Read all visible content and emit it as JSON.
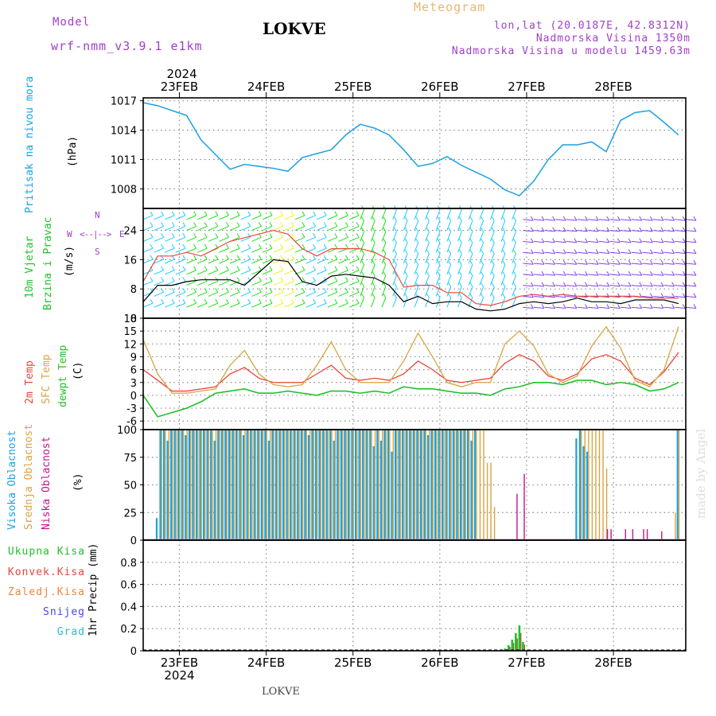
{
  "header": {
    "model_label": "Model",
    "model_name": "wrf-nmm_v3.9.1  e1km",
    "station": "LOKVE",
    "meteogram": "Meteogram",
    "lonlat": "lon,lat (20.0187E, 42.8312N)",
    "elevation": "Nadmorska Visina 1350m",
    "model_elevation": "Nadmorska Visina u modelu 1459.63m"
  },
  "footer": {
    "station": "LOKVE",
    "credit": "made by Angel"
  },
  "axis": {
    "year": "2024",
    "days": [
      "23FEB",
      "24FEB",
      "25FEB",
      "26FEB",
      "27FEB",
      "28FEB"
    ]
  },
  "colors": {
    "pressure": "#1ba1e2",
    "wind_speed": "#000000",
    "wind_gust": "#e8463c",
    "temp2m": "#e8463c",
    "sfc_temp": "#d9a441",
    "dewpt": "#22c02a",
    "cloud_high": "#1ba1e2",
    "cloud_mid": "#d9a441",
    "cloud_low": "#c4148c",
    "precip_total": "#22c02a",
    "precip_conv": "#e8463c",
    "precip_frozen": "#f0843c",
    "snow": "#4848e8",
    "grad": "#22c0c0"
  },
  "labels": {
    "pressure": [
      "Pritisak na nivou mora",
      "(hPa)"
    ],
    "wind": [
      "10m Vjetar",
      "Brzina i Pravac",
      "(m/s)"
    ],
    "compass": {
      "n": "N",
      "s": "S",
      "e": "E",
      "w": "W"
    },
    "temp": [
      "2m Temp",
      "SFC Temp",
      "dewpt Temp",
      "(C)"
    ],
    "cloud": [
      "Visoka Oblacnost",
      "Srednja Oblacnost",
      "Niska Oblacnost",
      "(%)"
    ],
    "precip_legend": [
      "Ukupna Kisa",
      "Konvek.Kisa",
      "Zaledj.Kisa",
      "Snijeg",
      "Grad"
    ],
    "precip_unit": "1hr Precip (mm)"
  },
  "chart_data": [
    {
      "type": "line",
      "panel": "pressure",
      "ylabel": "(hPa)",
      "ylim": [
        1006,
        1017.3
      ],
      "yticks": [
        1008,
        1011,
        1014,
        1017
      ],
      "x": [
        0,
        4,
        8,
        12,
        16,
        20,
        24,
        28,
        32,
        36,
        40,
        44,
        48,
        52,
        56,
        60,
        64,
        68,
        72,
        76,
        80,
        84,
        88,
        92,
        96,
        100,
        104,
        108,
        112,
        116,
        120,
        124,
        128,
        132,
        136,
        140,
        144,
        148
      ],
      "series": [
        {
          "name": "Pritisak na nivou mora",
          "values": [
            1016.8,
            1016.5,
            1016.0,
            1015.5,
            1013.0,
            1011.5,
            1010.0,
            1010.5,
            1010.3,
            1010.1,
            1009.8,
            1011.2,
            1011.6,
            1012.0,
            1013.5,
            1014.6,
            1014.2,
            1013.5,
            1012.0,
            1010.3,
            1010.6,
            1011.3,
            1010.4,
            1009.7,
            1009.0,
            1007.9,
            1007.3,
            1008.8,
            1011.0,
            1012.5,
            1012.5,
            1012.8,
            1011.8,
            1015.0,
            1015.8,
            1016.0,
            1014.8,
            1013.5
          ]
        }
      ]
    },
    {
      "type": "line",
      "panel": "wind",
      "ylabel": "(m/s)",
      "ylim": [
        0,
        30
      ],
      "yticks": [
        0,
        8,
        16,
        24
      ],
      "x": [
        0,
        4,
        8,
        12,
        16,
        20,
        24,
        28,
        32,
        36,
        40,
        44,
        48,
        52,
        56,
        60,
        64,
        68,
        72,
        76,
        80,
        84,
        88,
        92,
        96,
        100,
        104,
        108,
        112,
        116,
        120,
        124,
        128,
        132,
        136,
        140,
        144,
        148
      ],
      "series": [
        {
          "name": "speed",
          "values": [
            4.5,
            9.0,
            9.0,
            10.0,
            10.5,
            10.5,
            10.5,
            9.0,
            12.5,
            16.0,
            15.5,
            10.0,
            9.0,
            11.5,
            12.0,
            11.5,
            11.0,
            9.0,
            4.5,
            6.0,
            4.0,
            4.5,
            4.5,
            2.5,
            2.0,
            2.5,
            4.0,
            4.5,
            4.0,
            4.5,
            5.5,
            4.5,
            4.5,
            4.0,
            5.0,
            5.0,
            5.0,
            4.0
          ]
        },
        {
          "name": "gust",
          "values": [
            10.0,
            17.0,
            17.0,
            18.0,
            17.0,
            19.0,
            21.0,
            22.0,
            23.0,
            24.0,
            23.0,
            19.0,
            17.0,
            19.0,
            19.0,
            19.0,
            18.0,
            16.0,
            8.5,
            9.0,
            9.0,
            7.0,
            7.0,
            4.0,
            3.5,
            4.5,
            6.0,
            6.5,
            6.0,
            6.5,
            6.0,
            6.0,
            6.0,
            6.0,
            6.0,
            5.5,
            5.5,
            5.5
          ]
        }
      ],
      "barbs": {
        "x_step": 3,
        "levels": [
          0,
          3,
          6,
          9,
          12,
          15,
          18,
          21,
          24,
          27,
          30
        ],
        "speed_color_stops": [
          [
            0,
            "#00c8ff"
          ],
          [
            10,
            "#00e000"
          ],
          [
            14,
            "#f0f000"
          ],
          [
            18,
            "#ff3030"
          ]
        ],
        "after_hour_104_color": "#7a2cf0"
      }
    },
    {
      "type": "line",
      "panel": "temperature",
      "ylabel": "(C)",
      "ylim": [
        -8,
        18
      ],
      "yticks": [
        -6,
        -3,
        0,
        3,
        6,
        9,
        12,
        15,
        18
      ],
      "x": [
        0,
        4,
        8,
        12,
        16,
        20,
        24,
        28,
        32,
        36,
        40,
        44,
        48,
        52,
        56,
        60,
        64,
        68,
        72,
        76,
        80,
        84,
        88,
        92,
        96,
        100,
        104,
        108,
        112,
        116,
        120,
        124,
        128,
        132,
        136,
        140,
        144,
        148
      ],
      "series": [
        {
          "name": "2m Temp",
          "values": [
            6.0,
            3.5,
            1.0,
            1.0,
            1.5,
            2.0,
            5.0,
            6.5,
            4.0,
            3.0,
            3.0,
            3.0,
            5.0,
            7.0,
            4.0,
            3.5,
            4.0,
            3.5,
            5.0,
            8.0,
            6.0,
            3.5,
            3.0,
            3.5,
            4.0,
            7.5,
            9.5,
            8.0,
            4.5,
            3.5,
            5.0,
            8.5,
            9.5,
            8.0,
            4.0,
            2.5,
            5.5,
            10.0
          ]
        },
        {
          "name": "SFC Temp",
          "values": [
            13.0,
            5.0,
            0.5,
            0.5,
            1.0,
            1.5,
            7.0,
            10.5,
            5.0,
            2.5,
            2.0,
            2.5,
            7.0,
            12.5,
            6.0,
            3.0,
            3.0,
            3.0,
            8.0,
            14.5,
            9.0,
            3.0,
            2.0,
            3.0,
            3.0,
            12.0,
            15.0,
            11.5,
            5.0,
            3.0,
            4.5,
            11.5,
            16.0,
            11.0,
            3.5,
            2.0,
            6.0,
            16.0
          ]
        },
        {
          "name": "dewpt Temp",
          "values": [
            0.0,
            -5.0,
            -4.0,
            -3.0,
            -1.5,
            0.5,
            1.0,
            1.5,
            0.5,
            0.5,
            1.0,
            0.5,
            0.0,
            1.0,
            1.0,
            0.5,
            1.0,
            0.5,
            2.0,
            1.5,
            1.5,
            1.0,
            0.5,
            0.5,
            0.0,
            1.5,
            2.0,
            3.0,
            3.0,
            2.5,
            3.5,
            3.5,
            2.5,
            3.0,
            2.5,
            1.0,
            1.5,
            3.0
          ]
        }
      ]
    },
    {
      "type": "bar",
      "panel": "cloud",
      "ylabel": "(%)",
      "ylim": [
        0,
        100
      ],
      "yticks": [
        0,
        25,
        50,
        75,
        100
      ],
      "hours": [
        4,
        5,
        6,
        7,
        8,
        9,
        10,
        11,
        12,
        13,
        14,
        15,
        16,
        17,
        18,
        19,
        20,
        21,
        22,
        23,
        24,
        25,
        26,
        27,
        28,
        29,
        30,
        31,
        32,
        33,
        34,
        35,
        36,
        37,
        38,
        39,
        40,
        41,
        42,
        43,
        44,
        45,
        46,
        47,
        48,
        49,
        50,
        51,
        52,
        53,
        54,
        55,
        56,
        57,
        58,
        59,
        60,
        61,
        62,
        63,
        64,
        65,
        66,
        67,
        68,
        69,
        70,
        71,
        72,
        73,
        74,
        75,
        76,
        77,
        78,
        79,
        80,
        81,
        82,
        83,
        84,
        85,
        86,
        87,
        88,
        89,
        90,
        91,
        92,
        93,
        94,
        95,
        96,
        97,
        98,
        99,
        100,
        101,
        102,
        103,
        104,
        105,
        106,
        107,
        108,
        109,
        110,
        111,
        112,
        113,
        114,
        115,
        116,
        117,
        118,
        119,
        120,
        121,
        122,
        123,
        124,
        125,
        126,
        127,
        128,
        129,
        130,
        131,
        132,
        133,
        134,
        135,
        136,
        137,
        138,
        139,
        140,
        141,
        142,
        143,
        144,
        145,
        146,
        147,
        148
      ],
      "series": [
        {
          "name": "Visoka Oblacnost",
          "values": [
            20,
            100,
            100,
            90,
            100,
            100,
            100,
            100,
            95,
            100,
            100,
            100,
            100,
            100,
            100,
            100,
            90,
            100,
            100,
            100,
            100,
            100,
            100,
            100,
            95,
            100,
            100,
            100,
            100,
            100,
            100,
            90,
            100,
            100,
            100,
            100,
            100,
            100,
            100,
            100,
            100,
            100,
            95,
            100,
            100,
            100,
            100,
            100,
            100,
            90,
            100,
            100,
            100,
            100,
            100,
            100,
            100,
            100,
            100,
            100,
            85,
            100,
            90,
            100,
            100,
            80,
            100,
            100,
            100,
            100,
            100,
            100,
            100,
            100,
            100,
            95,
            100,
            100,
            100,
            100,
            100,
            100,
            100,
            100,
            100,
            100,
            100,
            90,
            100,
            0,
            0,
            0,
            0,
            0,
            0,
            0,
            0,
            0,
            0,
            0,
            0,
            0,
            0,
            0,
            0,
            0,
            0,
            0,
            0,
            0,
            0,
            0,
            0,
            0,
            0,
            0,
            92,
            100,
            85,
            80,
            0,
            0,
            0,
            0,
            0,
            0,
            0,
            0,
            0,
            0,
            0,
            0,
            0,
            0,
            0,
            0,
            0,
            0,
            0,
            0,
            0,
            0,
            0,
            0,
            100
          ]
        },
        {
          "name": "Srednja Oblacnost",
          "values": [
            0,
            100,
            100,
            100,
            100,
            100,
            100,
            100,
            100,
            100,
            100,
            100,
            100,
            100,
            100,
            100,
            100,
            100,
            100,
            100,
            100,
            100,
            100,
            100,
            100,
            100,
            100,
            100,
            100,
            100,
            100,
            100,
            100,
            100,
            100,
            100,
            100,
            100,
            100,
            100,
            100,
            100,
            100,
            100,
            100,
            100,
            100,
            100,
            100,
            100,
            100,
            100,
            100,
            100,
            100,
            100,
            100,
            100,
            100,
            100,
            100,
            100,
            100,
            100,
            100,
            100,
            100,
            100,
            100,
            100,
            100,
            100,
            100,
            100,
            100,
            100,
            100,
            100,
            100,
            100,
            100,
            100,
            100,
            100,
            100,
            100,
            100,
            100,
            100,
            100,
            100,
            70,
            70,
            30,
            0,
            0,
            0,
            0,
            0,
            0,
            0,
            0,
            0,
            0,
            0,
            0,
            0,
            0,
            0,
            0,
            0,
            0,
            0,
            0,
            0,
            0,
            0,
            100,
            100,
            100,
            100,
            100,
            100,
            100,
            65,
            0,
            0,
            0,
            0,
            0,
            0,
            0,
            0,
            0,
            0,
            0,
            0,
            0,
            0,
            0,
            0,
            0,
            0,
            25,
            100
          ]
        },
        {
          "name": "Niska Oblacnost",
          "values": [
            0,
            0,
            0,
            0,
            0,
            0,
            0,
            0,
            0,
            0,
            0,
            0,
            0,
            0,
            0,
            0,
            0,
            0,
            0,
            0,
            0,
            0,
            0,
            0,
            0,
            0,
            0,
            0,
            0,
            0,
            0,
            0,
            0,
            0,
            0,
            0,
            0,
            0,
            0,
            0,
            0,
            0,
            0,
            0,
            0,
            0,
            0,
            0,
            0,
            0,
            0,
            0,
            0,
            0,
            0,
            0,
            0,
            0,
            0,
            0,
            0,
            0,
            0,
            0,
            0,
            0,
            0,
            0,
            0,
            0,
            0,
            0,
            0,
            0,
            0,
            0,
            0,
            0,
            0,
            0,
            0,
            0,
            0,
            0,
            0,
            0,
            0,
            0,
            0,
            0,
            0,
            0,
            0,
            0,
            0,
            0,
            0,
            0,
            0,
            42,
            0,
            60,
            0,
            0,
            0,
            0,
            0,
            0,
            0,
            0,
            0,
            0,
            0,
            0,
            0,
            0,
            0,
            0,
            0,
            0,
            0,
            0,
            0,
            0,
            10,
            10,
            0,
            0,
            0,
            10,
            0,
            10,
            0,
            0,
            10,
            10,
            0,
            0,
            0,
            8,
            0,
            0,
            0,
            0,
            0
          ]
        }
      ]
    },
    {
      "type": "bar",
      "panel": "precip",
      "ylabel": "1hr Precip (mm)",
      "ylim": [
        0,
        1.0
      ],
      "yticks": [
        0,
        0.2,
        0.4,
        0.6,
        0.8
      ],
      "hours": [
        100,
        101,
        102,
        103,
        104,
        105
      ],
      "series": [
        {
          "name": "Ukupna Kisa",
          "values": [
            0.02,
            0.05,
            0.1,
            0.16,
            0.23,
            0.08
          ]
        },
        {
          "name": "Konvek.Kisa",
          "values": [
            0.0,
            0.0,
            0.0,
            0.0,
            0.0,
            0.0
          ]
        },
        {
          "name": "Zaledj.Kisa",
          "values": [
            0.0,
            0.0,
            0.0,
            0.0,
            0.0,
            0.0
          ]
        },
        {
          "name": "Snijeg",
          "values": [
            0.0,
            0.0,
            0.0,
            0.0,
            0.0,
            0.0
          ]
        },
        {
          "name": "Grad",
          "values": [
            0.0,
            0.0,
            0.0,
            0.0,
            0.0,
            0.0
          ]
        }
      ]
    }
  ]
}
